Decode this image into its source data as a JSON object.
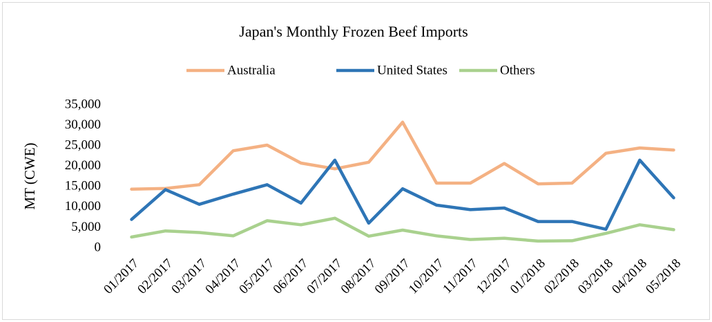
{
  "chart_data": {
    "type": "line",
    "title": "Japan's Monthly Frozen Beef Imports",
    "y_label": "MT (CWE)",
    "categories": [
      "01/2017",
      "02/2017",
      "03/2017",
      "04/2017",
      "05/2017",
      "06/2017",
      "07/2017",
      "08/2017",
      "09/2017",
      "10/2017",
      "11/2017",
      "12/2017",
      "01/2018",
      "02/2018",
      "03/2018",
      "04/2018",
      "05/2018"
    ],
    "series": [
      {
        "name": "Australia",
        "color": "#f4b183",
        "values": [
          14400,
          14600,
          15500,
          23800,
          25200,
          20800,
          19400,
          21000,
          30800,
          15900,
          15900,
          20700,
          15700,
          15900,
          23200,
          24500,
          24000
        ]
      },
      {
        "name": "United States",
        "color": "#2e75b6",
        "values": [
          7000,
          14300,
          10700,
          13200,
          15500,
          11000,
          21500,
          6100,
          14500,
          10500,
          9400,
          9800,
          6500,
          6500,
          4600,
          21500,
          12300
        ]
      },
      {
        "name": "Others",
        "color": "#a9d18e",
        "values": [
          2700,
          4200,
          3800,
          3000,
          6700,
          5700,
          7300,
          2900,
          4400,
          3000,
          2100,
          2400,
          1700,
          1800,
          3600,
          5700,
          4500
        ]
      }
    ],
    "ylim": [
      0,
      35000
    ],
    "yticks": [
      0,
      {
        "value": 5000,
        "label": "5,000"
      },
      {
        "value": 10000,
        "label": "10,000"
      },
      {
        "value": 15000,
        "label": "15,000"
      },
      {
        "value": 20000,
        "label": "20,000"
      },
      {
        "value": 25000,
        "label": "25,000"
      },
      {
        "value": 30000,
        "label": "30,000"
      },
      {
        "value": 35000,
        "label": "35,000"
      }
    ],
    "grid": false,
    "legend": "top"
  }
}
